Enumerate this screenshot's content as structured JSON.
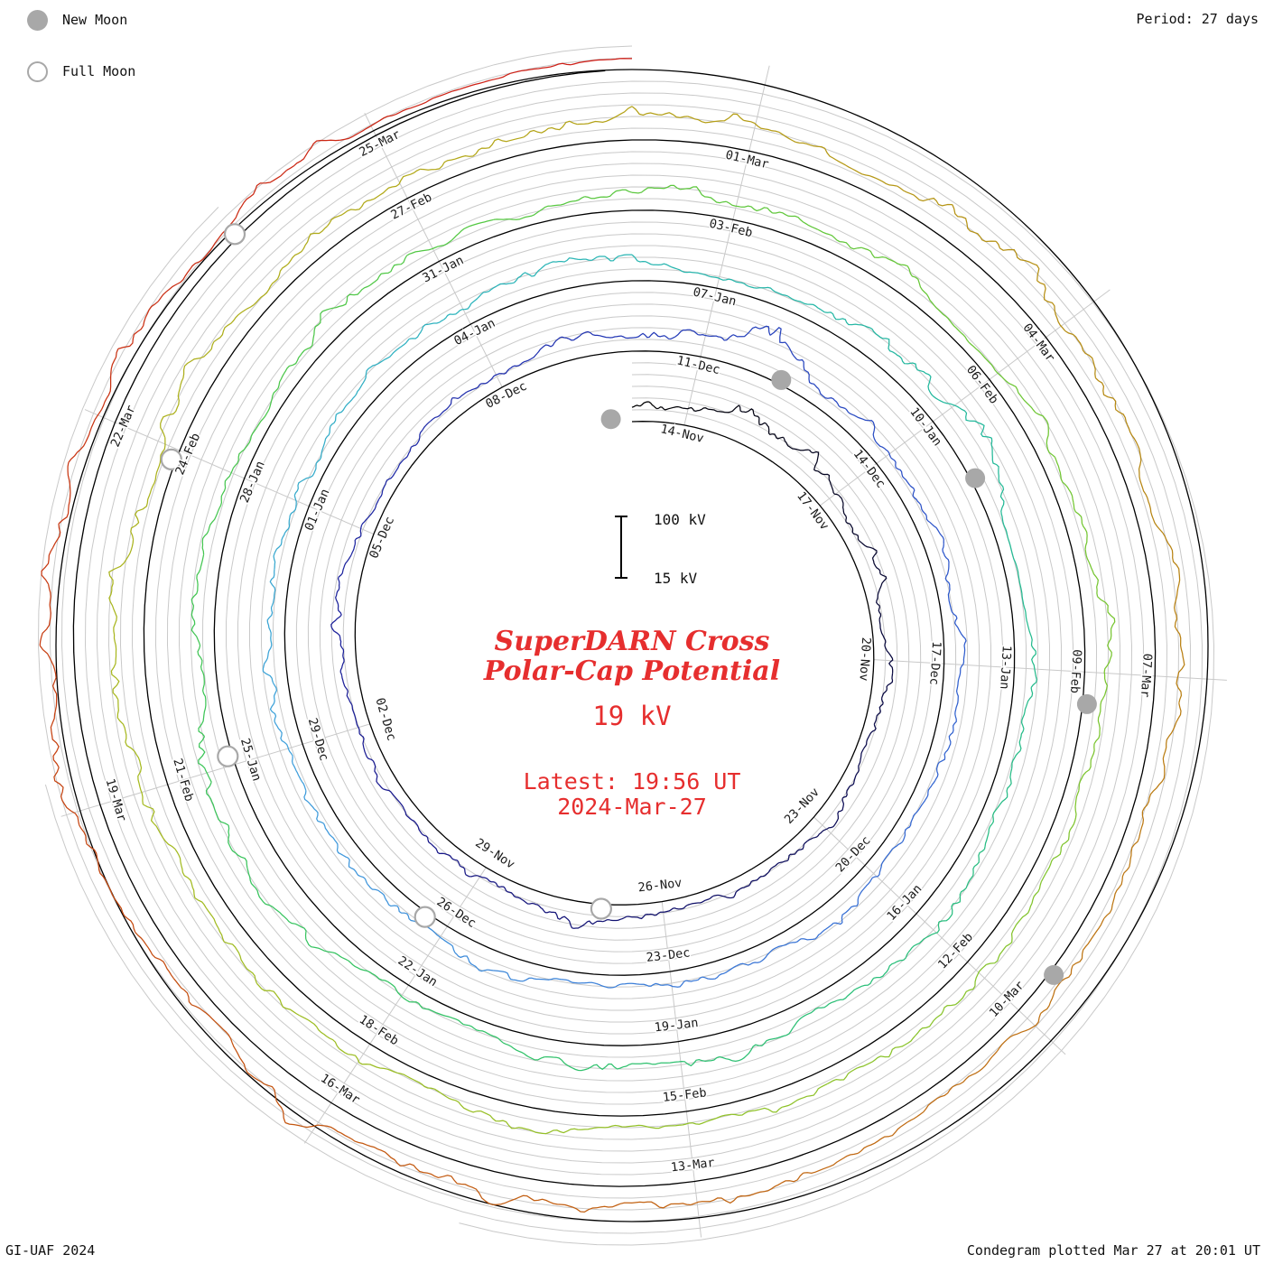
{
  "legend": {
    "new_moon": "New Moon",
    "full_moon": "Full Moon"
  },
  "header": {
    "period": "Period: 27 days"
  },
  "footer": {
    "left": "GI-UAF 2024",
    "right": "Condegram plotted Mar 27 at 20:01 UT"
  },
  "center": {
    "title_line1": "SuperDARN Cross",
    "title_line2": "Polar-Cap Potential",
    "current_value": "19 kV",
    "latest_line1": "Latest: 19:56 UT",
    "latest_line2": "2024-Mar-27"
  },
  "chart_data": {
    "type": "line",
    "layout": "polar-spiral condegram, time runs clockwise and outward, 27 days per revolution",
    "title": "SuperDARN Cross Polar-Cap Potential",
    "current_value_kv": 19,
    "latest": "19:56 UT 2024-Mar-27",
    "period_days": 27,
    "revolutions": 5,
    "start_date": "2023-Nov-13",
    "end_date": "2024-Mar-27",
    "scale_bar": {
      "top_label": "100 kV",
      "bottom_label": "15 kV"
    },
    "date_labels": [
      {
        "t": 1,
        "label": "14-Nov"
      },
      {
        "t": 4,
        "label": "17-Nov"
      },
      {
        "t": 7,
        "label": "20-Nov"
      },
      {
        "t": 10,
        "label": "23-Nov"
      },
      {
        "t": 13,
        "label": "26-Nov"
      },
      {
        "t": 16,
        "label": "29-Nov"
      },
      {
        "t": 19,
        "label": "02-Dec"
      },
      {
        "t": 22,
        "label": "05-Dec"
      },
      {
        "t": 25,
        "label": "08-Dec"
      },
      {
        "t": 28,
        "label": "11-Dec"
      },
      {
        "t": 31,
        "label": "14-Dec"
      },
      {
        "t": 34,
        "label": "17-Dec"
      },
      {
        "t": 37,
        "label": "20-Dec"
      },
      {
        "t": 40,
        "label": "23-Dec"
      },
      {
        "t": 43,
        "label": "26-Dec"
      },
      {
        "t": 46,
        "label": "29-Dec"
      },
      {
        "t": 49,
        "label": "01-Jan"
      },
      {
        "t": 52,
        "label": "04-Jan"
      },
      {
        "t": 55,
        "label": "07-Jan"
      },
      {
        "t": 58,
        "label": "10-Jan"
      },
      {
        "t": 61,
        "label": "13-Jan"
      },
      {
        "t": 64,
        "label": "16-Jan"
      },
      {
        "t": 67,
        "label": "19-Jan"
      },
      {
        "t": 70,
        "label": "22-Jan"
      },
      {
        "t": 73,
        "label": "25-Jan"
      },
      {
        "t": 76,
        "label": "28-Jan"
      },
      {
        "t": 79,
        "label": "31-Jan"
      },
      {
        "t": 82,
        "label": "03-Feb"
      },
      {
        "t": 85,
        "label": "06-Feb"
      },
      {
        "t": 88,
        "label": "09-Feb"
      },
      {
        "t": 91,
        "label": "12-Feb"
      },
      {
        "t": 94,
        "label": "15-Feb"
      },
      {
        "t": 97,
        "label": "18-Feb"
      },
      {
        "t": 100,
        "label": "21-Feb"
      },
      {
        "t": 103,
        "label": "24-Feb"
      },
      {
        "t": 106,
        "label": "27-Feb"
      },
      {
        "t": 109,
        "label": "01-Mar"
      },
      {
        "t": 112,
        "label": "04-Mar"
      },
      {
        "t": 115,
        "label": "07-Mar"
      },
      {
        "t": 118,
        "label": "10-Mar"
      },
      {
        "t": 121,
        "label": "13-Mar"
      },
      {
        "t": 124,
        "label": "16-Mar"
      },
      {
        "t": 127,
        "label": "19-Mar"
      },
      {
        "t": 130,
        "label": "22-Mar"
      },
      {
        "t": 133,
        "label": "25-Mar"
      }
    ],
    "moons": {
      "new_dates": [
        "2023-Nov-13",
        "2023-Dec-12",
        "2024-Jan-11",
        "2024-Feb-09",
        "2024-Mar-10"
      ],
      "full_dates": [
        "2023-Nov-27",
        "2023-Dec-27",
        "2024-Jan-25",
        "2024-Feb-24",
        "2024-Mar-25"
      ],
      "new": [
        -0.4,
        29.2,
        58.8,
        88.3,
        117.6
      ],
      "full": [
        14.0,
        43.3,
        73.1,
        102.9,
        131.7
      ]
    },
    "color_stops": [
      {
        "t": 0,
        "c": "#000000"
      },
      {
        "t": 9,
        "c": "#0a0a50"
      },
      {
        "t": 18,
        "c": "#191990"
      },
      {
        "t": 26,
        "c": "#2233b2"
      },
      {
        "t": 33,
        "c": "#2e59cc"
      },
      {
        "t": 40,
        "c": "#3a7ad8"
      },
      {
        "t": 46,
        "c": "#3fa0dc"
      },
      {
        "t": 52,
        "c": "#2cb4bc"
      },
      {
        "t": 58,
        "c": "#22b89c"
      },
      {
        "t": 65,
        "c": "#2abf78"
      },
      {
        "t": 72,
        "c": "#38c45c"
      },
      {
        "t": 79,
        "c": "#52c844"
      },
      {
        "t": 86,
        "c": "#70c632"
      },
      {
        "t": 93,
        "c": "#8ec228"
      },
      {
        "t": 100,
        "c": "#a6ba20"
      },
      {
        "t": 107,
        "c": "#b4a618"
      },
      {
        "t": 113,
        "c": "#b68812"
      },
      {
        "t": 119,
        "c": "#c06c12"
      },
      {
        "t": 125,
        "c": "#c45110"
      },
      {
        "t": 130,
        "c": "#c93312"
      },
      {
        "t": 136,
        "c": "#d01616"
      }
    ],
    "daily_mean_kv": [
      20,
      24,
      40,
      46,
      42,
      30,
      26,
      22,
      20,
      24,
      28,
      22,
      20,
      26,
      34,
      30,
      24,
      22,
      26,
      36,
      42,
      38,
      30,
      24,
      22,
      26,
      30,
      36,
      48,
      52,
      44,
      34,
      28,
      26,
      30,
      24,
      28,
      34,
      40,
      32,
      26,
      24,
      30,
      38,
      42,
      34,
      26,
      22,
      24,
      28,
      32,
      30,
      34,
      38,
      32,
      28,
      26,
      30,
      36,
      44,
      40,
      32,
      28,
      26,
      30,
      34,
      38,
      34,
      28,
      24,
      28,
      34,
      42,
      46,
      40,
      32,
      28,
      26,
      30,
      26,
      24,
      30,
      36,
      32,
      28,
      26,
      30,
      38,
      44,
      38,
      32,
      28,
      32,
      40,
      36,
      30,
      28,
      34,
      40,
      46,
      52,
      56,
      48,
      40,
      36,
      44,
      38,
      32,
      36,
      42,
      38,
      34,
      40,
      46,
      40,
      34,
      30,
      36,
      42,
      38,
      32,
      36,
      42,
      48,
      44,
      38,
      44,
      54,
      60,
      56,
      48,
      42,
      36,
      30,
      24,
      19,
      19
    ]
  }
}
